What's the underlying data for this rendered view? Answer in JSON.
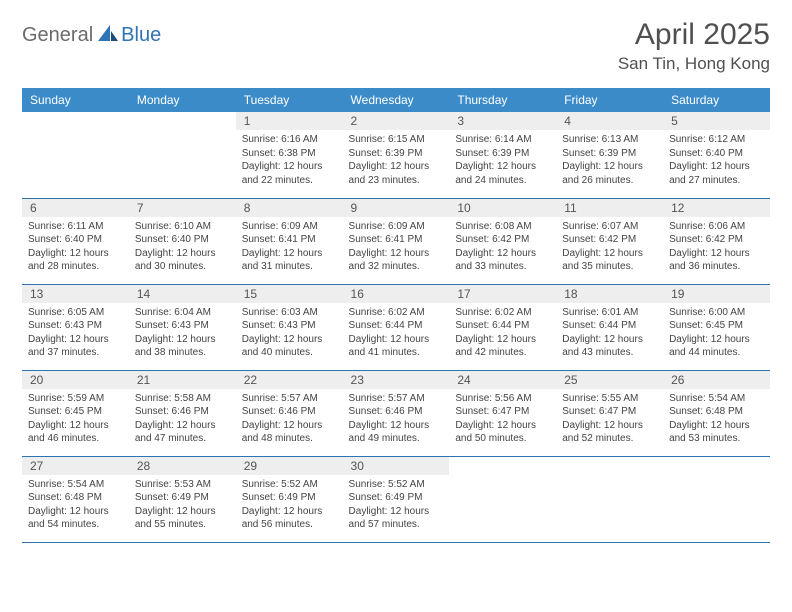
{
  "logo": {
    "general": "General",
    "blue": "Blue"
  },
  "title": {
    "month": "April 2025",
    "location": "San Tin, Hong Kong"
  },
  "colors": {
    "header_bg": "#3b8bc9",
    "header_text": "#ffffff",
    "daynum_bg": "#eeeeee",
    "border": "#2e74b5",
    "body_text": "#444444"
  },
  "day_names": [
    "Sunday",
    "Monday",
    "Tuesday",
    "Wednesday",
    "Thursday",
    "Friday",
    "Saturday"
  ],
  "weeks": [
    [
      null,
      null,
      {
        "n": "1",
        "sr": "Sunrise: 6:16 AM",
        "ss": "Sunset: 6:38 PM",
        "dl": "Daylight: 12 hours and 22 minutes."
      },
      {
        "n": "2",
        "sr": "Sunrise: 6:15 AM",
        "ss": "Sunset: 6:39 PM",
        "dl": "Daylight: 12 hours and 23 minutes."
      },
      {
        "n": "3",
        "sr": "Sunrise: 6:14 AM",
        "ss": "Sunset: 6:39 PM",
        "dl": "Daylight: 12 hours and 24 minutes."
      },
      {
        "n": "4",
        "sr": "Sunrise: 6:13 AM",
        "ss": "Sunset: 6:39 PM",
        "dl": "Daylight: 12 hours and 26 minutes."
      },
      {
        "n": "5",
        "sr": "Sunrise: 6:12 AM",
        "ss": "Sunset: 6:40 PM",
        "dl": "Daylight: 12 hours and 27 minutes."
      }
    ],
    [
      {
        "n": "6",
        "sr": "Sunrise: 6:11 AM",
        "ss": "Sunset: 6:40 PM",
        "dl": "Daylight: 12 hours and 28 minutes."
      },
      {
        "n": "7",
        "sr": "Sunrise: 6:10 AM",
        "ss": "Sunset: 6:40 PM",
        "dl": "Daylight: 12 hours and 30 minutes."
      },
      {
        "n": "8",
        "sr": "Sunrise: 6:09 AM",
        "ss": "Sunset: 6:41 PM",
        "dl": "Daylight: 12 hours and 31 minutes."
      },
      {
        "n": "9",
        "sr": "Sunrise: 6:09 AM",
        "ss": "Sunset: 6:41 PM",
        "dl": "Daylight: 12 hours and 32 minutes."
      },
      {
        "n": "10",
        "sr": "Sunrise: 6:08 AM",
        "ss": "Sunset: 6:42 PM",
        "dl": "Daylight: 12 hours and 33 minutes."
      },
      {
        "n": "11",
        "sr": "Sunrise: 6:07 AM",
        "ss": "Sunset: 6:42 PM",
        "dl": "Daylight: 12 hours and 35 minutes."
      },
      {
        "n": "12",
        "sr": "Sunrise: 6:06 AM",
        "ss": "Sunset: 6:42 PM",
        "dl": "Daylight: 12 hours and 36 minutes."
      }
    ],
    [
      {
        "n": "13",
        "sr": "Sunrise: 6:05 AM",
        "ss": "Sunset: 6:43 PM",
        "dl": "Daylight: 12 hours and 37 minutes."
      },
      {
        "n": "14",
        "sr": "Sunrise: 6:04 AM",
        "ss": "Sunset: 6:43 PM",
        "dl": "Daylight: 12 hours and 38 minutes."
      },
      {
        "n": "15",
        "sr": "Sunrise: 6:03 AM",
        "ss": "Sunset: 6:43 PM",
        "dl": "Daylight: 12 hours and 40 minutes."
      },
      {
        "n": "16",
        "sr": "Sunrise: 6:02 AM",
        "ss": "Sunset: 6:44 PM",
        "dl": "Daylight: 12 hours and 41 minutes."
      },
      {
        "n": "17",
        "sr": "Sunrise: 6:02 AM",
        "ss": "Sunset: 6:44 PM",
        "dl": "Daylight: 12 hours and 42 minutes."
      },
      {
        "n": "18",
        "sr": "Sunrise: 6:01 AM",
        "ss": "Sunset: 6:44 PM",
        "dl": "Daylight: 12 hours and 43 minutes."
      },
      {
        "n": "19",
        "sr": "Sunrise: 6:00 AM",
        "ss": "Sunset: 6:45 PM",
        "dl": "Daylight: 12 hours and 44 minutes."
      }
    ],
    [
      {
        "n": "20",
        "sr": "Sunrise: 5:59 AM",
        "ss": "Sunset: 6:45 PM",
        "dl": "Daylight: 12 hours and 46 minutes."
      },
      {
        "n": "21",
        "sr": "Sunrise: 5:58 AM",
        "ss": "Sunset: 6:46 PM",
        "dl": "Daylight: 12 hours and 47 minutes."
      },
      {
        "n": "22",
        "sr": "Sunrise: 5:57 AM",
        "ss": "Sunset: 6:46 PM",
        "dl": "Daylight: 12 hours and 48 minutes."
      },
      {
        "n": "23",
        "sr": "Sunrise: 5:57 AM",
        "ss": "Sunset: 6:46 PM",
        "dl": "Daylight: 12 hours and 49 minutes."
      },
      {
        "n": "24",
        "sr": "Sunrise: 5:56 AM",
        "ss": "Sunset: 6:47 PM",
        "dl": "Daylight: 12 hours and 50 minutes."
      },
      {
        "n": "25",
        "sr": "Sunrise: 5:55 AM",
        "ss": "Sunset: 6:47 PM",
        "dl": "Daylight: 12 hours and 52 minutes."
      },
      {
        "n": "26",
        "sr": "Sunrise: 5:54 AM",
        "ss": "Sunset: 6:48 PM",
        "dl": "Daylight: 12 hours and 53 minutes."
      }
    ],
    [
      {
        "n": "27",
        "sr": "Sunrise: 5:54 AM",
        "ss": "Sunset: 6:48 PM",
        "dl": "Daylight: 12 hours and 54 minutes."
      },
      {
        "n": "28",
        "sr": "Sunrise: 5:53 AM",
        "ss": "Sunset: 6:49 PM",
        "dl": "Daylight: 12 hours and 55 minutes."
      },
      {
        "n": "29",
        "sr": "Sunrise: 5:52 AM",
        "ss": "Sunset: 6:49 PM",
        "dl": "Daylight: 12 hours and 56 minutes."
      },
      {
        "n": "30",
        "sr": "Sunrise: 5:52 AM",
        "ss": "Sunset: 6:49 PM",
        "dl": "Daylight: 12 hours and 57 minutes."
      },
      null,
      null,
      null
    ]
  ]
}
